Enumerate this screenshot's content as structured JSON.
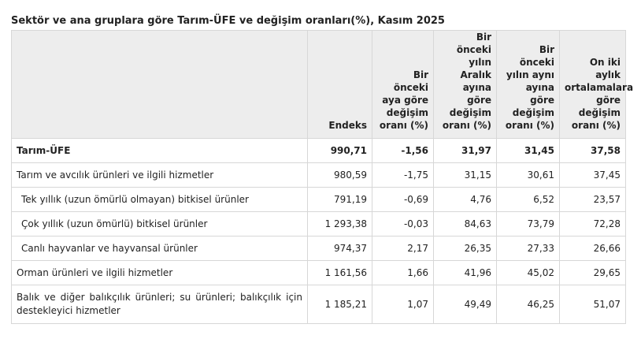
{
  "title": "Sektör ve ana gruplara göre Tarım-ÜFE ve değişim oranları(%), Kasım 2025",
  "table": {
    "headers": [
      "",
      "Endeks",
      "Bir önceki aya göre değişim oranı (%)",
      "Bir önceki yılın Aralık ayına göre değişim oranı (%)",
      "Bir önceki yılın aynı ayına göre değişim oranı (%)",
      "On iki aylık ortalamalara göre değişim oranı (%)"
    ],
    "rows": [
      {
        "label": "Tarım-ÜFE",
        "endeks": "990,71",
        "monthly": "-1,56",
        "dec": "31,97",
        "annual": "31,45",
        "avg12": "37,58"
      },
      {
        "label": "Tarım ve avcılık ürünleri ve ilgili hizmetler",
        "endeks": "980,59",
        "monthly": "-1,75",
        "dec": "31,15",
        "annual": "30,61",
        "avg12": "37,45"
      },
      {
        "label": "Tek yıllık (uzun ömürlü olmayan) bitkisel ürünler",
        "endeks": "791,19",
        "monthly": "-0,69",
        "dec": "4,76",
        "annual": "6,52",
        "avg12": "23,57"
      },
      {
        "label": "Çok yıllık (uzun ömürlü) bitkisel ürünler",
        "endeks": "1 293,38",
        "monthly": "-0,03",
        "dec": "84,63",
        "annual": "73,79",
        "avg12": "72,28"
      },
      {
        "label": "Canlı hayvanlar ve hayvansal ürünler",
        "endeks": "974,37",
        "monthly": "2,17",
        "dec": "26,35",
        "annual": "27,33",
        "avg12": "26,66"
      },
      {
        "label": "Orman ürünleri ve ilgili hizmetler",
        "endeks": "1 161,56",
        "monthly": "1,66",
        "dec": "41,96",
        "annual": "45,02",
        "avg12": "29,65"
      },
      {
        "label": "Balık ve diğer balıkçılık ürünleri; su ürünleri; balıkçılık için destekleyici hizmetler",
        "endeks": "1 185,21",
        "monthly": "1,07",
        "dec": "49,49",
        "annual": "46,25",
        "avg12": "51,07"
      }
    ]
  }
}
